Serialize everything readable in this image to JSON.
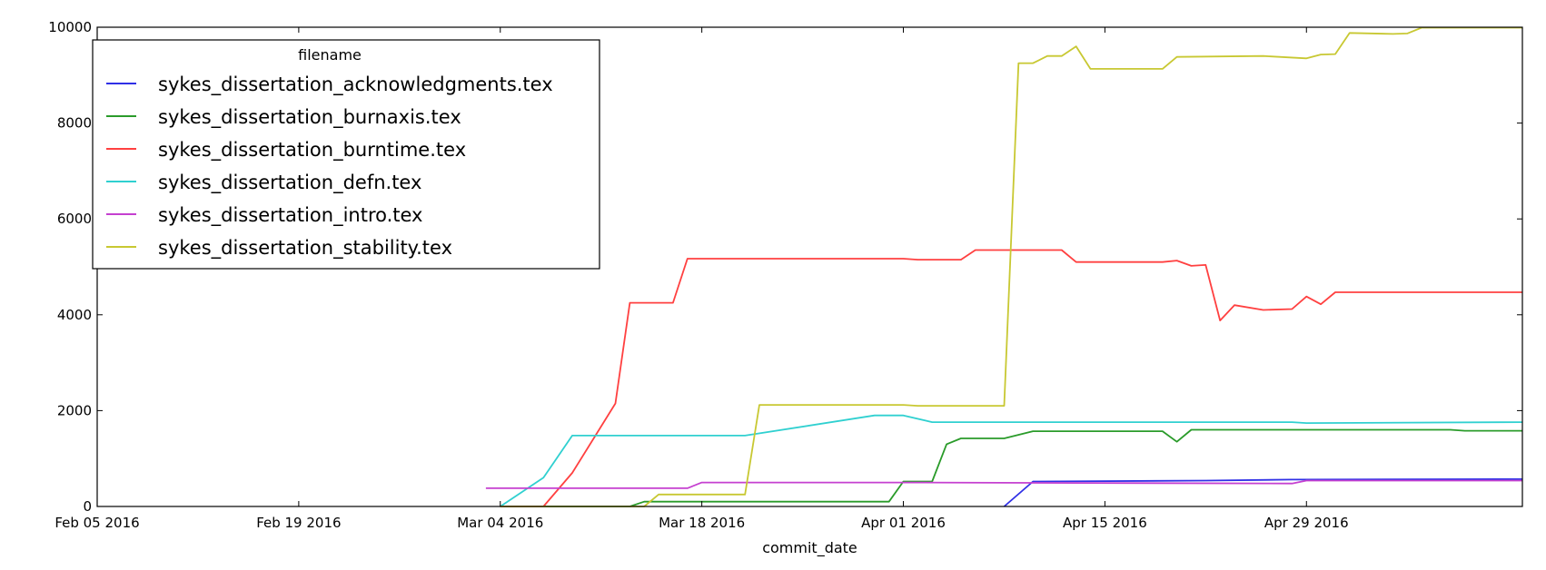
{
  "chart_data": {
    "type": "line",
    "xlabel": "commit_date",
    "ylabel": "",
    "x_axis": {
      "type": "date",
      "range": [
        "2016-02-05",
        "2016-05-14"
      ],
      "tick_labels": [
        "Feb 05 2016",
        "Feb 19 2016",
        "Mar 04 2016",
        "Mar 18 2016",
        "Apr 01 2016",
        "Apr 15 2016",
        "Apr 29 2016"
      ],
      "tick_dates": [
        "2016-02-05",
        "2016-02-19",
        "2016-03-04",
        "2016-03-18",
        "2016-04-01",
        "2016-04-15",
        "2016-04-29"
      ]
    },
    "y_axis": {
      "range": [
        0,
        10000
      ],
      "tick_labels": [
        "0",
        "2000",
        "4000",
        "6000",
        "8000",
        "10000"
      ],
      "tick_values": [
        0,
        2000,
        4000,
        6000,
        8000,
        10000
      ]
    },
    "legend": {
      "title": "filename",
      "placement": "top-left"
    },
    "grid": false,
    "series": [
      {
        "name": "sykes_dissertation_acknowledgments.tex",
        "color": "#3030e6",
        "points": [
          [
            "2016-04-08",
            0
          ],
          [
            "2016-04-10",
            520
          ],
          [
            "2016-04-22",
            540
          ],
          [
            "2016-04-28",
            560
          ],
          [
            "2016-05-14",
            570
          ]
        ]
      },
      {
        "name": "sykes_dissertation_burnaxis.tex",
        "color": "#2a9b2a",
        "points": [
          [
            "2016-03-04",
            0
          ],
          [
            "2016-03-10",
            0
          ],
          [
            "2016-03-13",
            0
          ],
          [
            "2016-03-14",
            100
          ],
          [
            "2016-03-31",
            100
          ],
          [
            "2016-04-01",
            520
          ],
          [
            "2016-04-03",
            520
          ],
          [
            "2016-04-04",
            1300
          ],
          [
            "2016-04-05",
            1420
          ],
          [
            "2016-04-08",
            1420
          ],
          [
            "2016-04-10",
            1570
          ],
          [
            "2016-04-19",
            1570
          ],
          [
            "2016-04-20",
            1350
          ],
          [
            "2016-04-21",
            1600
          ],
          [
            "2016-05-09",
            1600
          ],
          [
            "2016-05-10",
            1580
          ],
          [
            "2016-05-14",
            1580
          ]
        ]
      },
      {
        "name": "sykes_dissertation_burntime.tex",
        "color": "#ff4040",
        "points": [
          [
            "2016-03-04",
            0
          ],
          [
            "2016-03-07",
            0
          ],
          [
            "2016-03-09",
            700
          ],
          [
            "2016-03-12",
            2150
          ],
          [
            "2016-03-13",
            4250
          ],
          [
            "2016-03-16",
            4250
          ],
          [
            "2016-03-17",
            5170
          ],
          [
            "2016-04-01",
            5170
          ],
          [
            "2016-04-02",
            5150
          ],
          [
            "2016-04-05",
            5150
          ],
          [
            "2016-04-06",
            5350
          ],
          [
            "2016-04-12",
            5350
          ],
          [
            "2016-04-13",
            5100
          ],
          [
            "2016-04-19",
            5100
          ],
          [
            "2016-04-20",
            5130
          ],
          [
            "2016-04-21",
            5020
          ],
          [
            "2016-04-22",
            5040
          ],
          [
            "2016-04-23",
            3880
          ],
          [
            "2016-04-24",
            4200
          ],
          [
            "2016-04-26",
            4100
          ],
          [
            "2016-04-28",
            4120
          ],
          [
            "2016-04-29",
            4380
          ],
          [
            "2016-04-30",
            4220
          ],
          [
            "2016-05-01",
            4470
          ],
          [
            "2016-05-14",
            4470
          ]
        ]
      },
      {
        "name": "sykes_dissertation_defn.tex",
        "color": "#30d0d0",
        "points": [
          [
            "2016-03-04",
            0
          ],
          [
            "2016-03-07",
            600
          ],
          [
            "2016-03-09",
            1480
          ],
          [
            "2016-03-21",
            1480
          ],
          [
            "2016-03-30",
            1900
          ],
          [
            "2016-04-01",
            1900
          ],
          [
            "2016-04-03",
            1760
          ],
          [
            "2016-04-28",
            1760
          ],
          [
            "2016-04-29",
            1740
          ],
          [
            "2016-05-14",
            1760
          ]
        ]
      },
      {
        "name": "sykes_dissertation_intro.tex",
        "color": "#c540d0",
        "points": [
          [
            "2016-03-03",
            380
          ],
          [
            "2016-03-17",
            380
          ],
          [
            "2016-03-18",
            500
          ],
          [
            "2016-04-01",
            500
          ],
          [
            "2016-04-28",
            480
          ],
          [
            "2016-04-29",
            540
          ],
          [
            "2016-05-14",
            540
          ]
        ]
      },
      {
        "name": "sykes_dissertation_stability.tex",
        "color": "#c8c832",
        "points": [
          [
            "2016-03-04",
            0
          ],
          [
            "2016-03-14",
            0
          ],
          [
            "2016-03-15",
            250
          ],
          [
            "2016-03-21",
            250
          ],
          [
            "2016-03-22",
            2120
          ],
          [
            "2016-04-01",
            2120
          ],
          [
            "2016-04-02",
            2100
          ],
          [
            "2016-04-08",
            2100
          ],
          [
            "2016-04-09",
            9250
          ],
          [
            "2016-04-10",
            9250
          ],
          [
            "2016-04-11",
            9400
          ],
          [
            "2016-04-12",
            9400
          ],
          [
            "2016-04-13",
            9600
          ],
          [
            "2016-04-14",
            9130
          ],
          [
            "2016-04-19",
            9130
          ],
          [
            "2016-04-20",
            9380
          ],
          [
            "2016-04-26",
            9400
          ],
          [
            "2016-04-29",
            9350
          ],
          [
            "2016-04-30",
            9430
          ],
          [
            "2016-05-01",
            9440
          ],
          [
            "2016-05-02",
            9880
          ],
          [
            "2016-05-05",
            9860
          ],
          [
            "2016-05-06",
            9870
          ],
          [
            "2016-05-07",
            9990
          ],
          [
            "2016-05-14",
            9990
          ]
        ]
      }
    ]
  }
}
